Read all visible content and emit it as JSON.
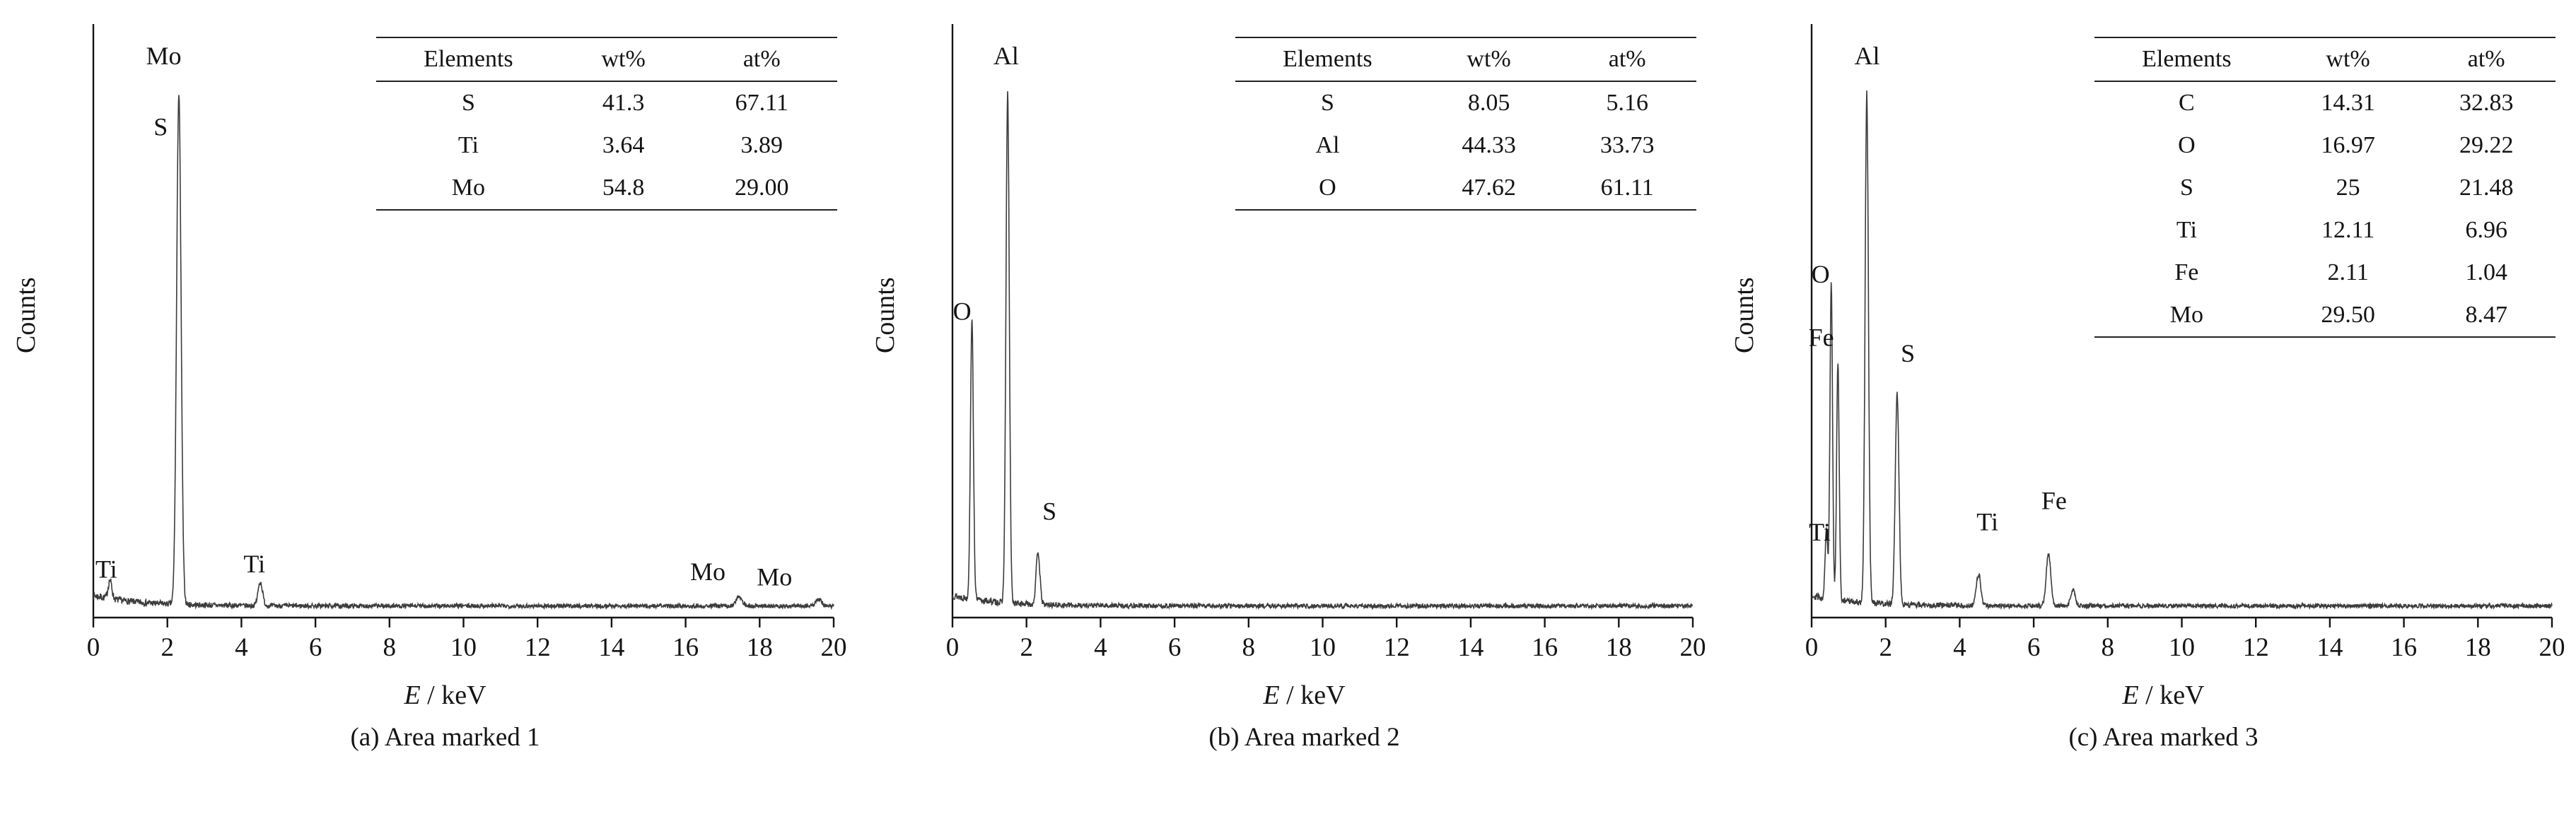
{
  "figure": {
    "background": "#ffffff",
    "text_color": "#141414",
    "line_color": "#3c3c3c",
    "x_axis_symbol": "E",
    "x_axis_unit": " / keV",
    "table_headers": [
      "Elements",
      "wt%",
      "at%"
    ]
  },
  "chart_data": [
    {
      "type": "line",
      "caption": "(a) Area marked 1",
      "xlabel": "E / keV",
      "ylabel": "Counts",
      "xlim": [
        0,
        20
      ],
      "x_ticks": [
        0,
        2,
        4,
        6,
        8,
        10,
        12,
        14,
        16,
        18,
        20
      ],
      "y_axis_note": "counts axis unlabeled (arbitrary units)",
      "seed": 7,
      "peaks": [
        {
          "element": "Ti",
          "x_keV": 0.45,
          "rel_height": 0.035,
          "sigma": 0.05
        },
        {
          "element": "S/Mo",
          "x_keV": 2.31,
          "rel_height": 0.97,
          "sigma": 0.06
        },
        {
          "element": "Ti",
          "x_keV": 4.51,
          "rel_height": 0.045,
          "sigma": 0.06
        },
        {
          "element": "Mo",
          "x_keV": 17.45,
          "rel_height": 0.018,
          "sigma": 0.08
        },
        {
          "element": "Mo",
          "x_keV": 19.6,
          "rel_height": 0.012,
          "sigma": 0.08
        }
      ],
      "peak_labels": [
        {
          "text": "Mo",
          "x": 1.9,
          "v": 1.035
        },
        {
          "text": "S",
          "x": 1.82,
          "v": 0.9
        },
        {
          "text": "Ti",
          "x": 0.35,
          "v": 0.06
        },
        {
          "text": "Ti",
          "x": 4.35,
          "v": 0.07
        },
        {
          "text": "Mo",
          "x": 16.6,
          "v": 0.055
        },
        {
          "text": "Mo",
          "x": 18.4,
          "v": 0.045
        }
      ],
      "table": {
        "headers": [
          "Elements",
          "wt%",
          "at%"
        ],
        "rows": [
          [
            "S",
            "41.3",
            "67.11"
          ],
          [
            "Ti",
            "3.64",
            "3.89"
          ],
          [
            "Mo",
            "54.8",
            "29.00"
          ]
        ]
      }
    },
    {
      "type": "line",
      "caption": "(b) Area marked 2",
      "xlabel": "E / keV",
      "ylabel": "Counts",
      "xlim": [
        0,
        20
      ],
      "x_ticks": [
        0,
        2,
        4,
        6,
        8,
        10,
        12,
        14,
        16,
        18,
        20
      ],
      "y_axis_note": "counts axis unlabeled (arbitrary units)",
      "seed": 13,
      "peaks": [
        {
          "element": "O",
          "x_keV": 0.525,
          "rel_height": 0.53,
          "sigma": 0.04
        },
        {
          "element": "Al",
          "x_keV": 1.49,
          "rel_height": 0.97,
          "sigma": 0.045
        },
        {
          "element": "S",
          "x_keV": 2.31,
          "rel_height": 0.1,
          "sigma": 0.05
        }
      ],
      "peak_labels": [
        {
          "text": "Al",
          "x": 1.45,
          "v": 1.035
        },
        {
          "text": "O",
          "x": 0.26,
          "v": 0.55
        },
        {
          "text": "S",
          "x": 2.62,
          "v": 0.17
        }
      ],
      "table": {
        "headers": [
          "Elements",
          "wt%",
          "at%"
        ],
        "rows": [
          [
            "S",
            "8.05",
            "5.16"
          ],
          [
            "Al",
            "44.33",
            "33.73"
          ],
          [
            "O",
            "47.62",
            "61.11"
          ]
        ]
      }
    },
    {
      "type": "line",
      "caption": "(c) Area marked 3",
      "xlabel": "E / keV",
      "ylabel": "Counts",
      "xlim": [
        0,
        20
      ],
      "x_ticks": [
        0,
        2,
        4,
        6,
        8,
        10,
        12,
        14,
        16,
        18,
        20
      ],
      "y_axis_note": "counts axis unlabeled (arbitrary units)",
      "seed": 29,
      "peaks": [
        {
          "element": "Ti",
          "x_keV": 0.4,
          "rel_height": 0.13,
          "sigma": 0.035
        },
        {
          "element": "O",
          "x_keV": 0.53,
          "rel_height": 0.6,
          "sigma": 0.035
        },
        {
          "element": "Fe",
          "x_keV": 0.71,
          "rel_height": 0.45,
          "sigma": 0.035
        },
        {
          "element": "Al",
          "x_keV": 1.49,
          "rel_height": 0.97,
          "sigma": 0.045
        },
        {
          "element": "S",
          "x_keV": 2.31,
          "rel_height": 0.4,
          "sigma": 0.05
        },
        {
          "element": "Ti",
          "x_keV": 4.51,
          "rel_height": 0.06,
          "sigma": 0.06
        },
        {
          "element": "Fe",
          "x_keV": 6.4,
          "rel_height": 0.1,
          "sigma": 0.06
        },
        {
          "element": "Fe",
          "x_keV": 7.06,
          "rel_height": 0.03,
          "sigma": 0.06
        }
      ],
      "peak_labels": [
        {
          "text": "Al",
          "x": 1.5,
          "v": 1.035
        },
        {
          "text": "O",
          "x": 0.24,
          "v": 0.62
        },
        {
          "text": "Fe",
          "x": 0.26,
          "v": 0.5
        },
        {
          "text": "Ti",
          "x": 0.22,
          "v": 0.13
        },
        {
          "text": "S",
          "x": 2.6,
          "v": 0.47
        },
        {
          "text": "Ti",
          "x": 4.75,
          "v": 0.15
        },
        {
          "text": "Fe",
          "x": 6.55,
          "v": 0.19
        }
      ],
      "table": {
        "headers": [
          "Elements",
          "wt%",
          "at%"
        ],
        "rows": [
          [
            "C",
            "14.31",
            "32.83"
          ],
          [
            "O",
            "16.97",
            "29.22"
          ],
          [
            "S",
            "25",
            "21.48"
          ],
          [
            "Ti",
            "12.11",
            "6.96"
          ],
          [
            "Fe",
            "2.11",
            "1.04"
          ],
          [
            "Mo",
            "29.50",
            "8.47"
          ]
        ]
      }
    }
  ]
}
